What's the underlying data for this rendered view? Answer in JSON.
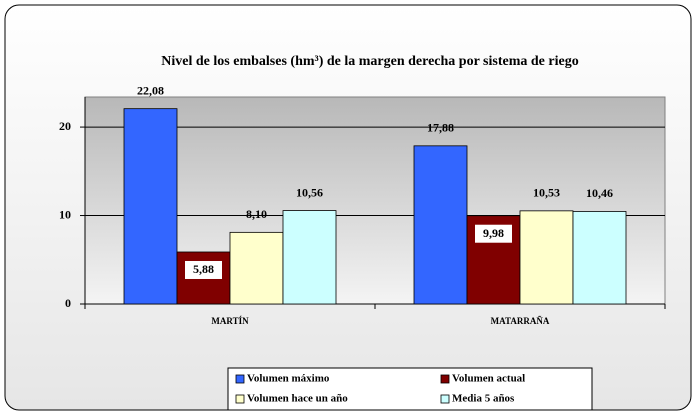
{
  "chart_data": {
    "type": "bar",
    "title": "Nivel de los embalses (hm³) de la margen derecha por sistema de riego",
    "categories": [
      "MARTÍN",
      "MATARRAÑA"
    ],
    "series": [
      {
        "name": "Volumen máximo",
        "color": "#3366ff",
        "values": [
          22.08,
          17.88
        ],
        "value_labels": [
          "22,08",
          "17,88"
        ]
      },
      {
        "name": "Volumen actual",
        "color": "#800000",
        "values": [
          5.88,
          9.98
        ],
        "value_labels": [
          "5,88",
          "9,98"
        ]
      },
      {
        "name": "Volumen hace un año",
        "color": "#ffffcc",
        "values": [
          8.1,
          10.53
        ],
        "value_labels": [
          "8,10",
          "10,53"
        ]
      },
      {
        "name": "Media 5 años",
        "color": "#ccffff",
        "values": [
          10.56,
          10.46
        ],
        "value_labels": [
          "10,56",
          "10,46"
        ]
      }
    ],
    "ylim": [
      0,
      23.4
    ],
    "yticks": [
      0,
      10,
      20
    ],
    "grid": true,
    "legend": "bottom"
  }
}
